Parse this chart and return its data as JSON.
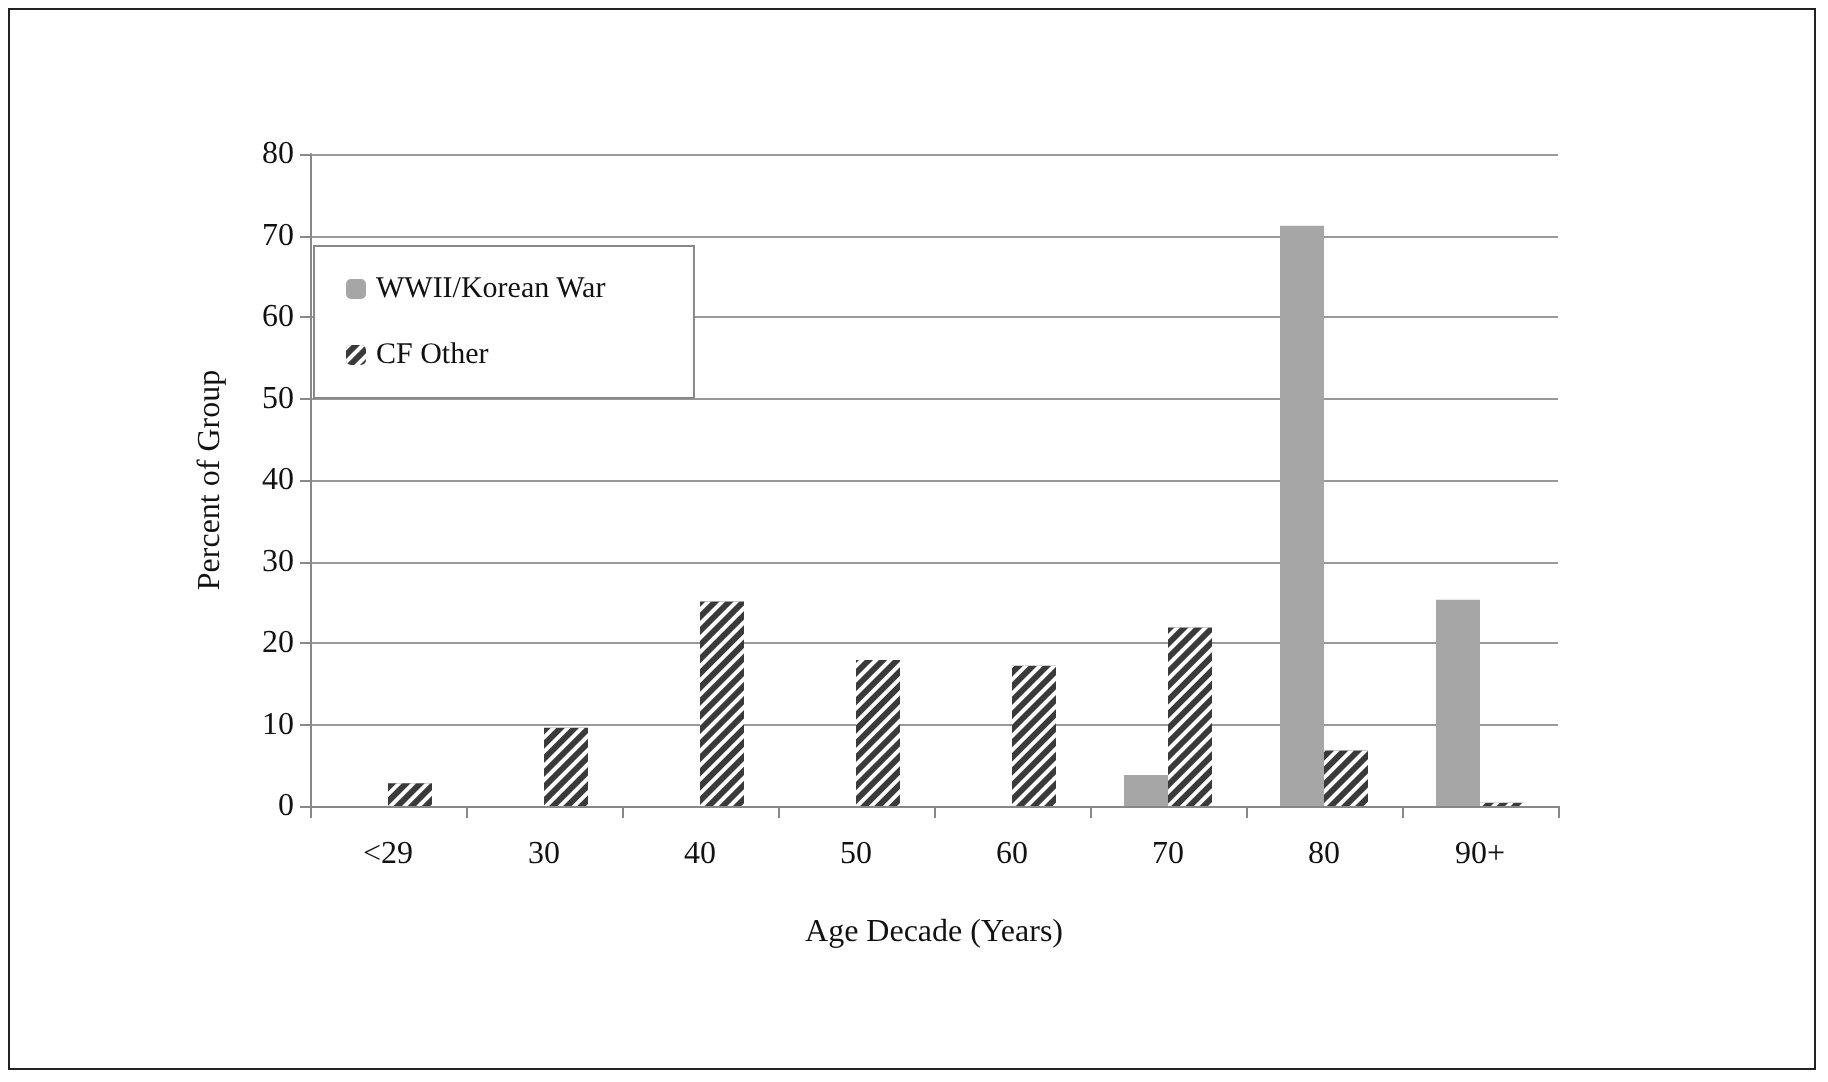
{
  "chart_data": {
    "type": "bar",
    "xlabel": "Age Decade (Years)",
    "ylabel": "Percent of Group",
    "categories": [
      "<29",
      "30",
      "40",
      "50",
      "60",
      "70",
      "80",
      "90+"
    ],
    "series": [
      {
        "name": "WWII/Korean War",
        "color": "#a6a6a6",
        "values": [
          0,
          0,
          0,
          0,
          0,
          3.8,
          71.2,
          25.3
        ]
      },
      {
        "name": "CF Other",
        "color": "#3a3a3a",
        "values": [
          2.8,
          9.6,
          25.1,
          17.9,
          17.2,
          21.9,
          6.8,
          0.4
        ]
      }
    ],
    "ylim": [
      0,
      80
    ],
    "yticks": [
      0,
      10,
      20,
      30,
      40,
      50,
      60,
      70,
      80
    ],
    "grid": "y",
    "legend": "top left"
  }
}
